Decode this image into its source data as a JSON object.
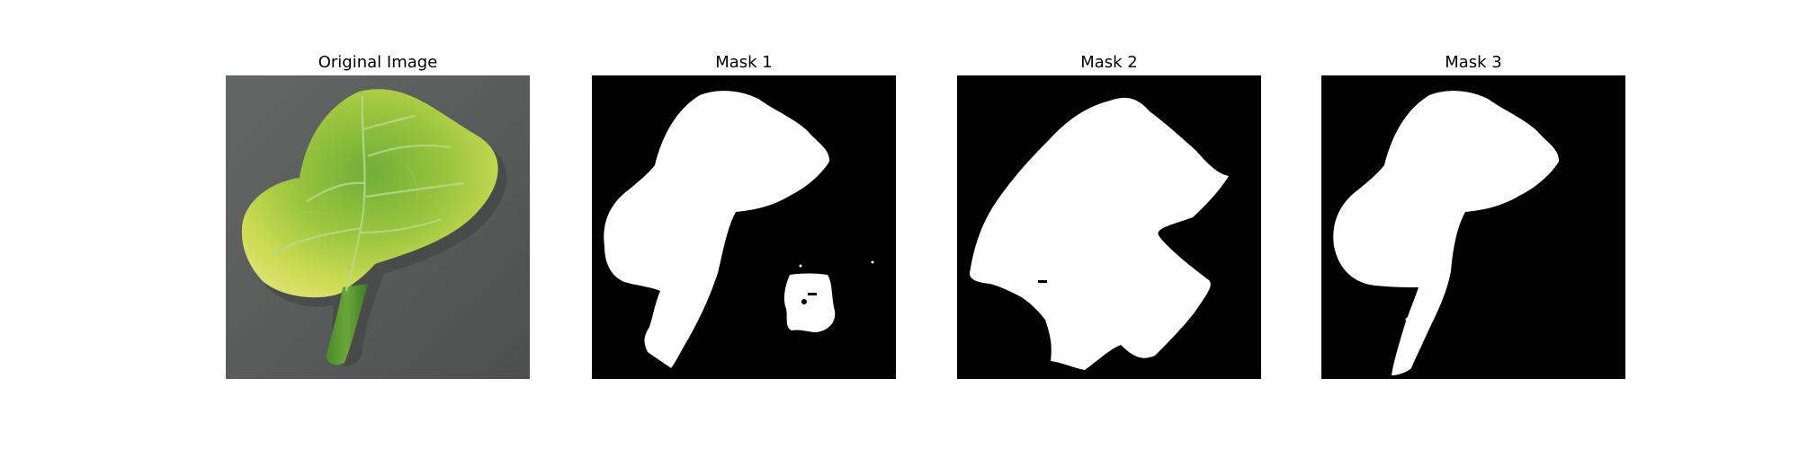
{
  "panels": [
    {
      "title": "Original Image"
    },
    {
      "title": "Mask 1"
    },
    {
      "title": "Mask 2"
    },
    {
      "title": "Mask 3"
    }
  ],
  "colors": {
    "background": "#ffffff",
    "mask_background": "#000000",
    "mask_foreground": "#ffffff",
    "leaf_yellow": "#d8df55",
    "leaf_green": "#7bb33a",
    "leaf_dark_green": "#4d8a2c",
    "surface_gray": "#5d5f5e"
  }
}
